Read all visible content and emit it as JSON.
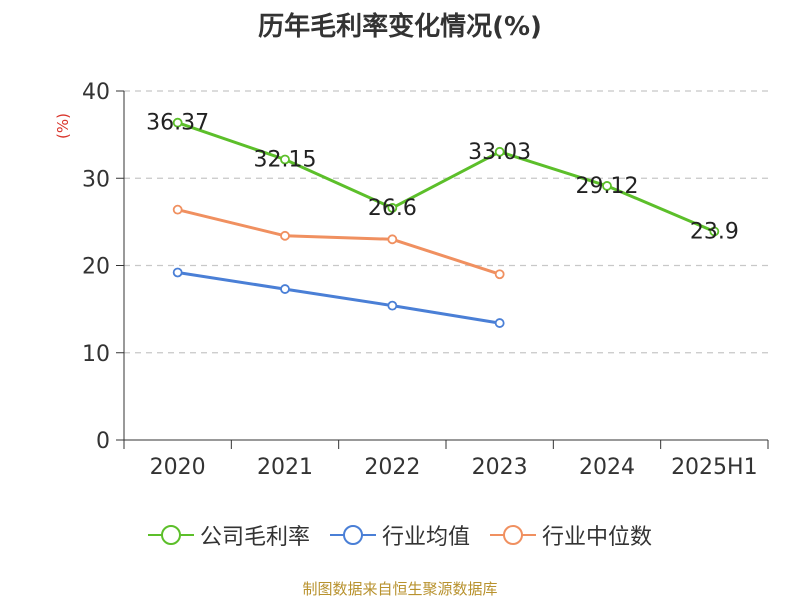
{
  "chart_data": {
    "type": "line",
    "title": "历年毛利率变化情况(%)",
    "ylabel": "(%)",
    "xlabel": "",
    "categories": [
      "2020",
      "2021",
      "2022",
      "2023",
      "2024",
      "2025H1"
    ],
    "ylim": [
      0,
      40
    ],
    "yticks": [
      0,
      10,
      20,
      30,
      40
    ],
    "grid": true,
    "legend_position": "bottom",
    "series": [
      {
        "name": "公司毛利率",
        "color": "#5cbf2a",
        "values": [
          36.37,
          32.15,
          26.6,
          33.03,
          29.12,
          23.9
        ],
        "labels": [
          "36.37",
          "32.15",
          "26.6",
          "33.03",
          "29.12",
          "23.9"
        ]
      },
      {
        "name": "行业均值",
        "color": "#4a7fd6",
        "values": [
          19.2,
          17.3,
          15.4,
          13.4,
          null,
          null
        ]
      },
      {
        "name": "行业中位数",
        "color": "#f09060",
        "values": [
          26.4,
          23.4,
          23.0,
          19.0,
          null,
          null
        ]
      }
    ]
  },
  "footer": {
    "source": "制图数据来自恒生聚源数据库"
  }
}
